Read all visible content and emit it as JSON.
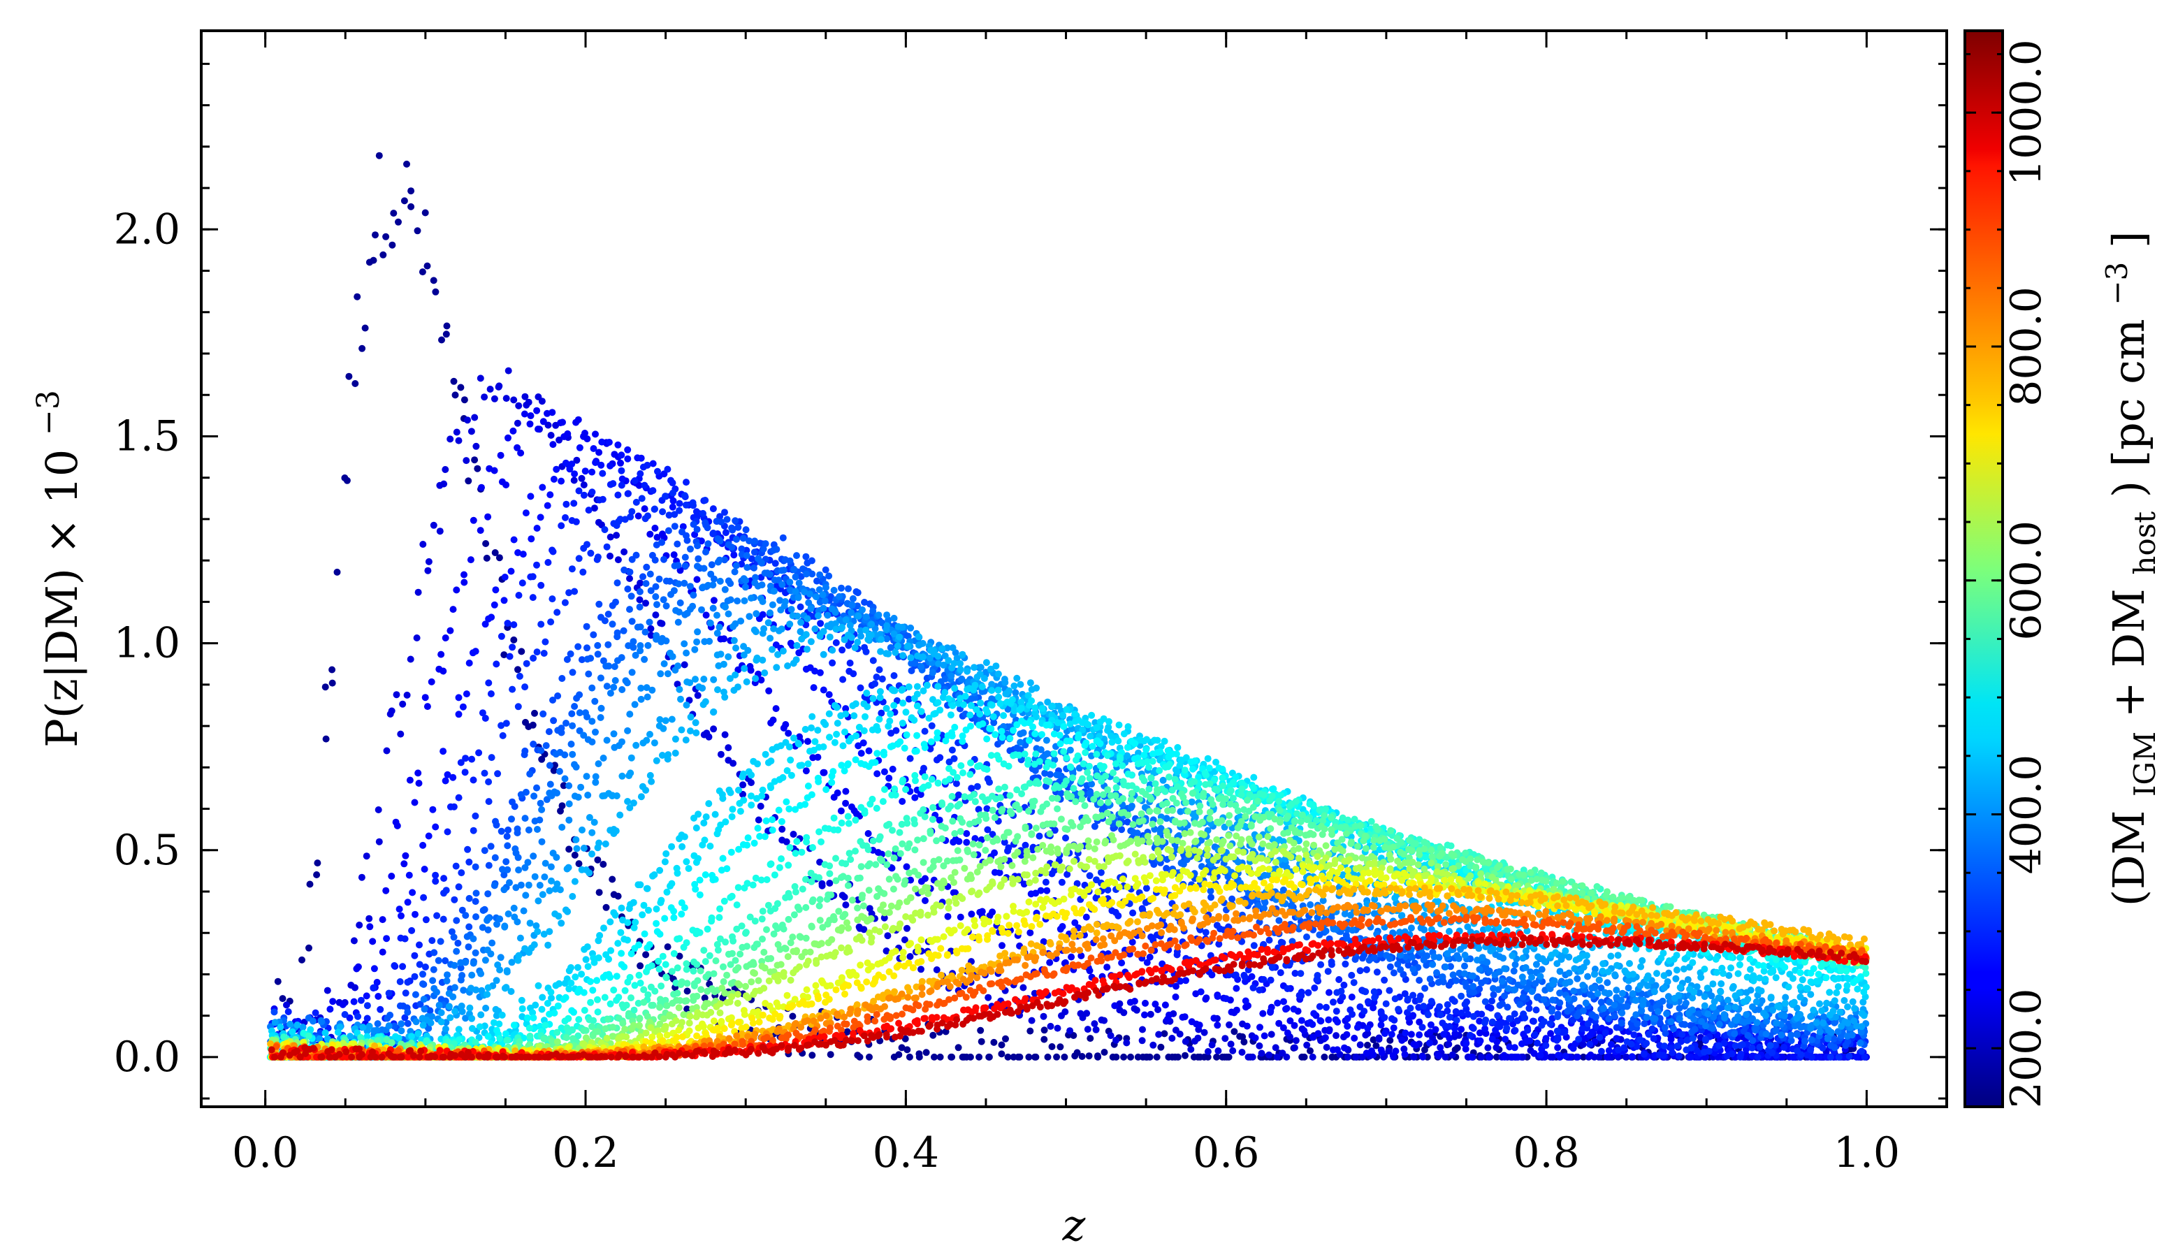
{
  "chart_data": {
    "type": "scatter",
    "title": "",
    "xlabel": "z",
    "ylabel": "P(z|DM) × 10",
    "ylabel_exponent": "−3",
    "xlim": [
      -0.04,
      1.05
    ],
    "ylim": [
      -0.12,
      2.48
    ],
    "x_ticks": [
      0.0,
      0.2,
      0.4,
      0.6,
      0.8,
      1.0
    ],
    "x_tick_labels": [
      "0.0",
      "0.2",
      "0.4",
      "0.6",
      "0.8",
      "1.0"
    ],
    "y_ticks": [
      0.0,
      0.5,
      1.0,
      1.5,
      2.0
    ],
    "y_tick_labels": [
      "0.0",
      "0.5",
      "1.0",
      "1.5",
      "2.0"
    ],
    "grid": false,
    "colorbar": {
      "label_prefix": "(DM",
      "label_sub1": "IGM",
      "label_mid": " + DM",
      "label_sub2": "host",
      "label_suffix": ") [pc cm",
      "label_exp": "−3",
      "label_end": "]",
      "range": [
        150,
        1070
      ],
      "ticks": [
        200,
        400,
        600,
        800,
        1000
      ],
      "tick_labels": [
        "200.0",
        "400.0",
        "600.0",
        "800.0",
        "1000.0"
      ],
      "colormap": "jet"
    },
    "series": [
      {
        "dm": 170,
        "peak_z": 0.08,
        "peak_p": 2.1
      },
      {
        "dm": 235,
        "peak_z": 0.15,
        "peak_p": 1.6
      },
      {
        "dm": 255,
        "peak_z": 0.18,
        "peak_p": 1.53
      },
      {
        "dm": 275,
        "peak_z": 0.21,
        "peak_p": 1.45
      },
      {
        "dm": 290,
        "peak_z": 0.23,
        "peak_p": 1.4
      },
      {
        "dm": 305,
        "peak_z": 0.25,
        "peak_p": 1.33
      },
      {
        "dm": 330,
        "peak_z": 0.28,
        "peak_p": 1.27
      },
      {
        "dm": 345,
        "peak_z": 0.29,
        "peak_p": 1.22
      },
      {
        "dm": 360,
        "peak_z": 0.3,
        "peak_p": 1.18
      },
      {
        "dm": 375,
        "peak_z": 0.31,
        "peak_p": 1.14
      },
      {
        "dm": 390,
        "peak_z": 0.33,
        "peak_p": 1.1
      },
      {
        "dm": 410,
        "peak_z": 0.35,
        "peak_p": 1.05
      },
      {
        "dm": 430,
        "peak_z": 0.37,
        "peak_p": 1.01
      },
      {
        "dm": 455,
        "peak_z": 0.42,
        "peak_p": 0.88
      },
      {
        "dm": 470,
        "peak_z": 0.44,
        "peak_p": 0.85
      },
      {
        "dm": 490,
        "peak_z": 0.46,
        "peak_p": 0.79
      },
      {
        "dm": 515,
        "peak_z": 0.49,
        "peak_p": 0.72
      },
      {
        "dm": 540,
        "peak_z": 0.52,
        "peak_p": 0.67
      },
      {
        "dm": 565,
        "peak_z": 0.54,
        "peak_p": 0.63
      },
      {
        "dm": 585,
        "peak_z": 0.56,
        "peak_p": 0.58
      },
      {
        "dm": 620,
        "peak_z": 0.57,
        "peak_p": 0.53
      },
      {
        "dm": 660,
        "peak_z": 0.59,
        "peak_p": 0.49
      },
      {
        "dm": 700,
        "peak_z": 0.63,
        "peak_p": 0.45
      },
      {
        "dm": 740,
        "peak_z": 0.65,
        "peak_p": 0.42
      },
      {
        "dm": 790,
        "peak_z": 0.7,
        "peak_p": 0.4
      },
      {
        "dm": 830,
        "peak_z": 0.7,
        "peak_p": 0.36
      },
      {
        "dm": 880,
        "peak_z": 0.73,
        "peak_p": 0.33
      },
      {
        "dm": 950,
        "peak_z": 0.77,
        "peak_p": 0.29
      },
      {
        "dm": 1000,
        "peak_z": 0.8,
        "peak_p": 0.28
      }
    ]
  }
}
